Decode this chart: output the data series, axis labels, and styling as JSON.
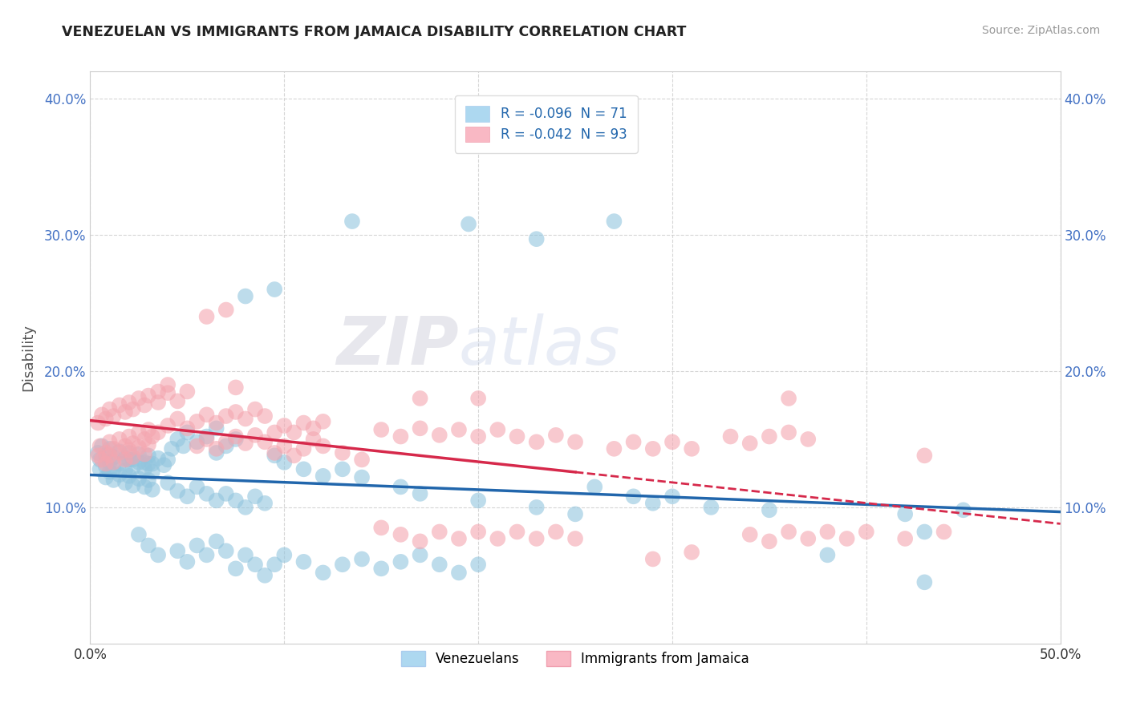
{
  "title": "VENEZUELAN VS IMMIGRANTS FROM JAMAICA DISABILITY CORRELATION CHART",
  "source": "Source: ZipAtlas.com",
  "ylabel": "Disability",
  "xlim": [
    0.0,
    0.5
  ],
  "ylim": [
    0.0,
    0.42
  ],
  "xticks": [
    0.0,
    0.1,
    0.2,
    0.3,
    0.4,
    0.5
  ],
  "xticklabels": [
    "0.0%",
    "",
    "",
    "",
    "",
    "50.0%"
  ],
  "yticks": [
    0.1,
    0.2,
    0.3,
    0.4
  ],
  "yticklabels": [
    "10.0%",
    "20.0%",
    "30.0%",
    "40.0%"
  ],
  "blue_color": "#92c5de",
  "pink_color": "#f4a6b0",
  "blue_line_color": "#2166ac",
  "pink_line_color": "#d6294b",
  "watermark_zip": "ZIP",
  "watermark_atlas": "atlas",
  "background_color": "#ffffff",
  "grid_color": "#cccccc",
  "tick_color": "#4472c4",
  "venezuelan_scatter": [
    [
      0.005,
      0.135
    ],
    [
      0.008,
      0.13
    ],
    [
      0.01,
      0.133
    ],
    [
      0.012,
      0.128
    ],
    [
      0.015,
      0.132
    ],
    [
      0.018,
      0.127
    ],
    [
      0.02,
      0.135
    ],
    [
      0.022,
      0.129
    ],
    [
      0.025,
      0.133
    ],
    [
      0.028,
      0.128
    ],
    [
      0.03,
      0.132
    ],
    [
      0.032,
      0.126
    ],
    [
      0.005,
      0.128
    ],
    [
      0.008,
      0.122
    ],
    [
      0.01,
      0.126
    ],
    [
      0.012,
      0.12
    ],
    [
      0.015,
      0.124
    ],
    [
      0.018,
      0.118
    ],
    [
      0.02,
      0.123
    ],
    [
      0.022,
      0.116
    ],
    [
      0.025,
      0.121
    ],
    [
      0.028,
      0.115
    ],
    [
      0.03,
      0.12
    ],
    [
      0.032,
      0.113
    ],
    [
      0.004,
      0.14
    ],
    [
      0.006,
      0.145
    ],
    [
      0.008,
      0.138
    ],
    [
      0.01,
      0.143
    ],
    [
      0.012,
      0.137
    ],
    [
      0.015,
      0.141
    ],
    [
      0.018,
      0.136
    ],
    [
      0.02,
      0.14
    ],
    [
      0.022,
      0.135
    ],
    [
      0.025,
      0.139
    ],
    [
      0.028,
      0.133
    ],
    [
      0.03,
      0.138
    ],
    [
      0.032,
      0.132
    ],
    [
      0.035,
      0.136
    ],
    [
      0.038,
      0.131
    ],
    [
      0.04,
      0.135
    ],
    [
      0.042,
      0.143
    ],
    [
      0.045,
      0.15
    ],
    [
      0.048,
      0.145
    ],
    [
      0.05,
      0.155
    ],
    [
      0.055,
      0.148
    ],
    [
      0.06,
      0.152
    ],
    [
      0.065,
      0.158
    ],
    [
      0.065,
      0.14
    ],
    [
      0.07,
      0.145
    ],
    [
      0.075,
      0.15
    ],
    [
      0.04,
      0.118
    ],
    [
      0.045,
      0.112
    ],
    [
      0.05,
      0.108
    ],
    [
      0.055,
      0.115
    ],
    [
      0.06,
      0.11
    ],
    [
      0.065,
      0.105
    ],
    [
      0.07,
      0.11
    ],
    [
      0.075,
      0.105
    ],
    [
      0.08,
      0.1
    ],
    [
      0.085,
      0.108
    ],
    [
      0.09,
      0.103
    ],
    [
      0.08,
      0.255
    ],
    [
      0.095,
      0.26
    ],
    [
      0.135,
      0.31
    ],
    [
      0.195,
      0.308
    ],
    [
      0.23,
      0.297
    ],
    [
      0.27,
      0.31
    ],
    [
      0.095,
      0.138
    ],
    [
      0.1,
      0.133
    ],
    [
      0.11,
      0.128
    ],
    [
      0.12,
      0.123
    ],
    [
      0.13,
      0.128
    ],
    [
      0.14,
      0.122
    ],
    [
      0.16,
      0.115
    ],
    [
      0.17,
      0.11
    ],
    [
      0.2,
      0.105
    ],
    [
      0.23,
      0.1
    ],
    [
      0.25,
      0.095
    ],
    [
      0.26,
      0.115
    ],
    [
      0.28,
      0.108
    ],
    [
      0.29,
      0.103
    ],
    [
      0.3,
      0.108
    ],
    [
      0.32,
      0.1
    ],
    [
      0.35,
      0.098
    ],
    [
      0.42,
      0.095
    ],
    [
      0.43,
      0.082
    ],
    [
      0.45,
      0.098
    ],
    [
      0.025,
      0.08
    ],
    [
      0.03,
      0.072
    ],
    [
      0.035,
      0.065
    ],
    [
      0.045,
      0.068
    ],
    [
      0.05,
      0.06
    ],
    [
      0.055,
      0.072
    ],
    [
      0.06,
      0.065
    ],
    [
      0.065,
      0.075
    ],
    [
      0.07,
      0.068
    ],
    [
      0.075,
      0.055
    ],
    [
      0.08,
      0.065
    ],
    [
      0.085,
      0.058
    ],
    [
      0.09,
      0.05
    ],
    [
      0.095,
      0.058
    ],
    [
      0.1,
      0.065
    ],
    [
      0.11,
      0.06
    ],
    [
      0.12,
      0.052
    ],
    [
      0.13,
      0.058
    ],
    [
      0.14,
      0.062
    ],
    [
      0.15,
      0.055
    ],
    [
      0.16,
      0.06
    ],
    [
      0.17,
      0.065
    ],
    [
      0.18,
      0.058
    ],
    [
      0.19,
      0.052
    ],
    [
      0.2,
      0.058
    ],
    [
      0.38,
      0.065
    ],
    [
      0.43,
      0.045
    ]
  ],
  "jamaica_scatter": [
    [
      0.005,
      0.145
    ],
    [
      0.008,
      0.14
    ],
    [
      0.01,
      0.148
    ],
    [
      0.012,
      0.143
    ],
    [
      0.015,
      0.15
    ],
    [
      0.018,
      0.145
    ],
    [
      0.02,
      0.152
    ],
    [
      0.022,
      0.147
    ],
    [
      0.025,
      0.155
    ],
    [
      0.028,
      0.15
    ],
    [
      0.03,
      0.157
    ],
    [
      0.032,
      0.152
    ],
    [
      0.004,
      0.138
    ],
    [
      0.006,
      0.135
    ],
    [
      0.008,
      0.132
    ],
    [
      0.01,
      0.138
    ],
    [
      0.012,
      0.133
    ],
    [
      0.015,
      0.14
    ],
    [
      0.018,
      0.135
    ],
    [
      0.02,
      0.142
    ],
    [
      0.022,
      0.137
    ],
    [
      0.025,
      0.144
    ],
    [
      0.028,
      0.139
    ],
    [
      0.03,
      0.146
    ],
    [
      0.004,
      0.162
    ],
    [
      0.006,
      0.168
    ],
    [
      0.008,
      0.165
    ],
    [
      0.01,
      0.172
    ],
    [
      0.012,
      0.167
    ],
    [
      0.015,
      0.175
    ],
    [
      0.018,
      0.17
    ],
    [
      0.02,
      0.177
    ],
    [
      0.022,
      0.172
    ],
    [
      0.025,
      0.18
    ],
    [
      0.028,
      0.175
    ],
    [
      0.03,
      0.182
    ],
    [
      0.035,
      0.177
    ],
    [
      0.04,
      0.184
    ],
    [
      0.045,
      0.178
    ],
    [
      0.05,
      0.185
    ],
    [
      0.035,
      0.155
    ],
    [
      0.04,
      0.16
    ],
    [
      0.045,
      0.165
    ],
    [
      0.05,
      0.158
    ],
    [
      0.055,
      0.163
    ],
    [
      0.06,
      0.168
    ],
    [
      0.065,
      0.162
    ],
    [
      0.07,
      0.167
    ],
    [
      0.055,
      0.145
    ],
    [
      0.06,
      0.15
    ],
    [
      0.065,
      0.143
    ],
    [
      0.07,
      0.148
    ],
    [
      0.075,
      0.152
    ],
    [
      0.08,
      0.147
    ],
    [
      0.085,
      0.153
    ],
    [
      0.09,
      0.148
    ],
    [
      0.075,
      0.17
    ],
    [
      0.08,
      0.165
    ],
    [
      0.085,
      0.172
    ],
    [
      0.09,
      0.167
    ],
    [
      0.035,
      0.185
    ],
    [
      0.04,
      0.19
    ],
    [
      0.06,
      0.24
    ],
    [
      0.07,
      0.245
    ],
    [
      0.075,
      0.188
    ],
    [
      0.095,
      0.14
    ],
    [
      0.1,
      0.145
    ],
    [
      0.105,
      0.138
    ],
    [
      0.11,
      0.143
    ],
    [
      0.115,
      0.15
    ],
    [
      0.12,
      0.145
    ],
    [
      0.13,
      0.14
    ],
    [
      0.14,
      0.135
    ],
    [
      0.095,
      0.155
    ],
    [
      0.1,
      0.16
    ],
    [
      0.105,
      0.155
    ],
    [
      0.11,
      0.162
    ],
    [
      0.115,
      0.158
    ],
    [
      0.12,
      0.163
    ],
    [
      0.15,
      0.157
    ],
    [
      0.16,
      0.152
    ],
    [
      0.17,
      0.158
    ],
    [
      0.18,
      0.153
    ],
    [
      0.19,
      0.157
    ],
    [
      0.2,
      0.152
    ],
    [
      0.21,
      0.157
    ],
    [
      0.22,
      0.152
    ],
    [
      0.17,
      0.18
    ],
    [
      0.23,
      0.148
    ],
    [
      0.24,
      0.153
    ],
    [
      0.25,
      0.148
    ],
    [
      0.27,
      0.143
    ],
    [
      0.28,
      0.148
    ],
    [
      0.29,
      0.143
    ],
    [
      0.3,
      0.148
    ],
    [
      0.31,
      0.143
    ],
    [
      0.33,
      0.152
    ],
    [
      0.34,
      0.147
    ],
    [
      0.35,
      0.152
    ],
    [
      0.36,
      0.155
    ],
    [
      0.37,
      0.15
    ],
    [
      0.2,
      0.18
    ],
    [
      0.15,
      0.085
    ],
    [
      0.16,
      0.08
    ],
    [
      0.17,
      0.075
    ],
    [
      0.18,
      0.082
    ],
    [
      0.19,
      0.077
    ],
    [
      0.2,
      0.082
    ],
    [
      0.21,
      0.077
    ],
    [
      0.22,
      0.082
    ],
    [
      0.23,
      0.077
    ],
    [
      0.24,
      0.082
    ],
    [
      0.25,
      0.077
    ],
    [
      0.34,
      0.08
    ],
    [
      0.35,
      0.075
    ],
    [
      0.36,
      0.082
    ],
    [
      0.37,
      0.077
    ],
    [
      0.38,
      0.082
    ],
    [
      0.39,
      0.077
    ],
    [
      0.4,
      0.082
    ],
    [
      0.42,
      0.077
    ],
    [
      0.44,
      0.082
    ],
    [
      0.29,
      0.062
    ],
    [
      0.31,
      0.067
    ],
    [
      0.43,
      0.138
    ],
    [
      0.36,
      0.18
    ]
  ]
}
